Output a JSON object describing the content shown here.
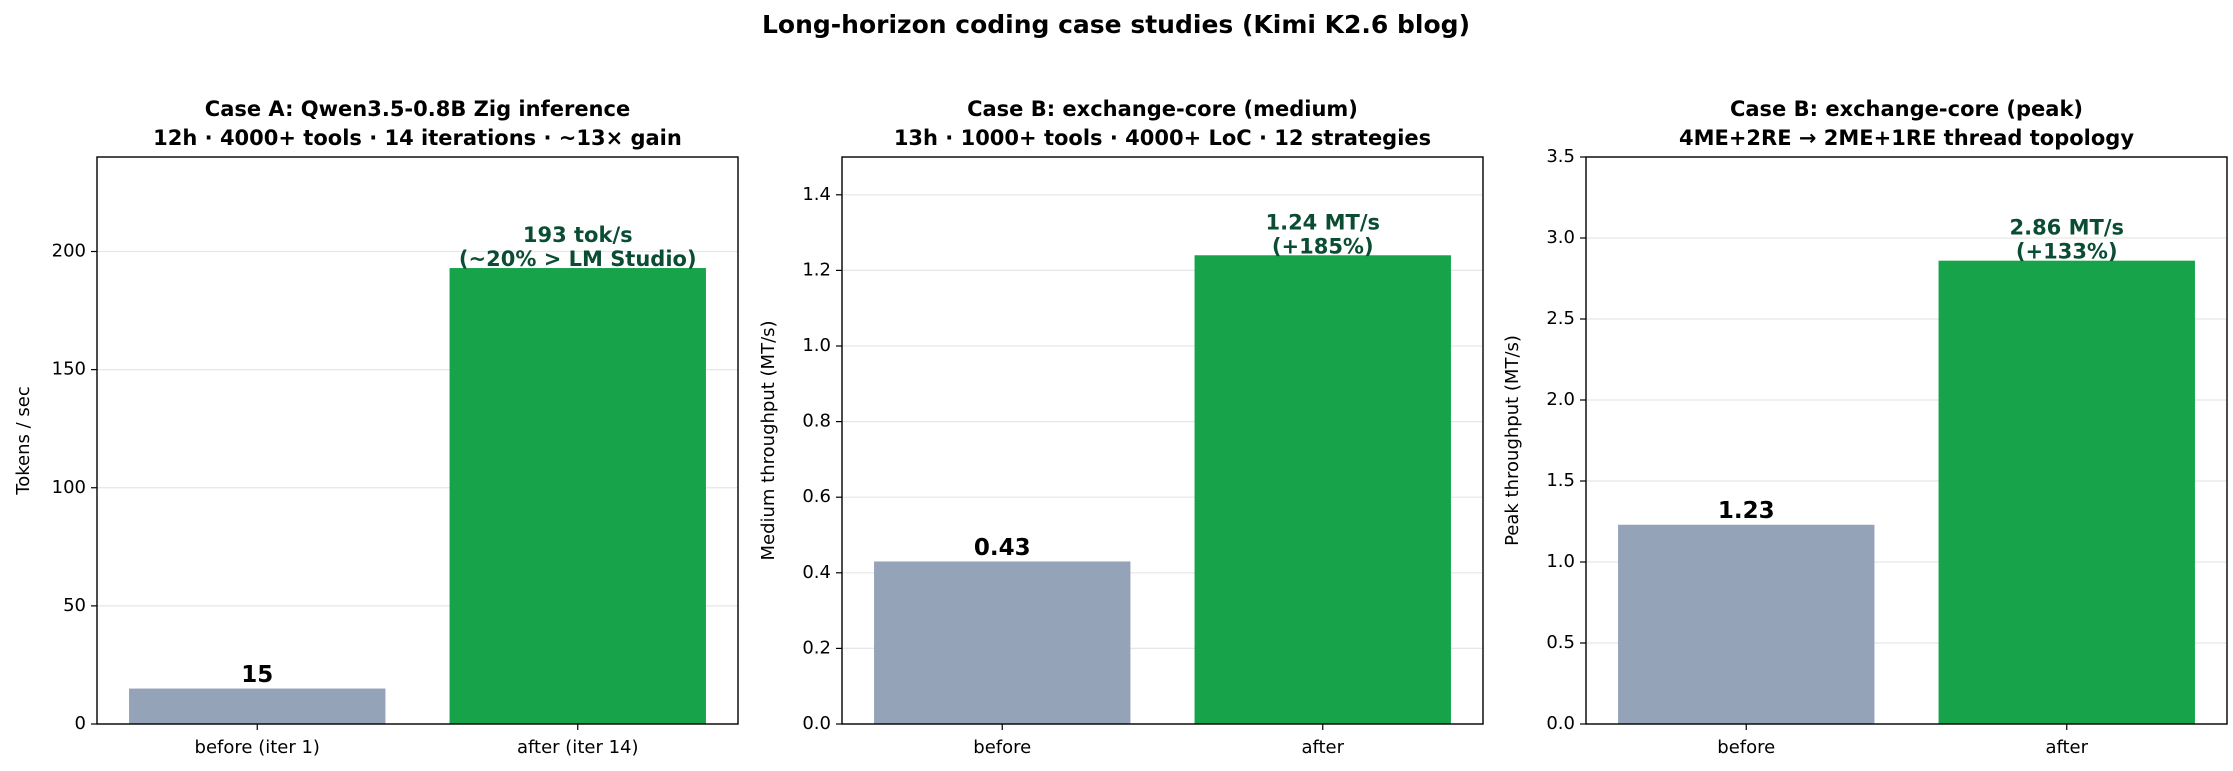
{
  "title": "Long-horizon coding case studies (Kimi K2.6 blog)",
  "chart_data": [
    {
      "type": "bar",
      "title": [
        "Case A: Qwen3.5-0.8B Zig inference",
        "12h · 4000+ tools · 14 iterations · ~13× gain"
      ],
      "y_label": "Tokens / sec",
      "categories": [
        "before (iter 1)",
        "after (iter 14)"
      ],
      "values": [
        15,
        193
      ],
      "value_labels": [
        "15",
        [
          "193 tok/s",
          "(~20% > LM Studio)"
        ]
      ],
      "colors": [
        "#94a3b8",
        "#16a34a"
      ],
      "label_colors": [
        "#000000",
        "#0b4d33"
      ],
      "ylim": [
        0,
        240
      ],
      "yticks": [
        0,
        50,
        100,
        150,
        200
      ],
      "grid": true
    },
    {
      "type": "bar",
      "title": [
        "Case B: exchange-core (medium)",
        "13h · 1000+ tools · 4000+ LoC · 12 strategies"
      ],
      "y_label": "Medium throughput (MT/s)",
      "categories": [
        "before",
        "after"
      ],
      "values": [
        0.43,
        1.24
      ],
      "value_labels": [
        "0.43",
        [
          "1.24 MT/s",
          "(+185%)"
        ]
      ],
      "colors": [
        "#94a3b8",
        "#16a34a"
      ],
      "label_colors": [
        "#000000",
        "#0b4d33"
      ],
      "ylim": [
        0,
        1.5
      ],
      "yticks": [
        {
          "value": 0,
          "label": "0.0"
        },
        0.2,
        0.4,
        0.6,
        0.8,
        {
          "value": 1,
          "label": "1.0"
        },
        1.2,
        1.4
      ],
      "grid": true
    },
    {
      "type": "bar",
      "title": [
        "Case B: exchange-core (peak)",
        "4ME+2RE → 2ME+1RE thread topology"
      ],
      "y_label": "Peak throughput (MT/s)",
      "categories": [
        "before",
        "after"
      ],
      "values": [
        1.23,
        2.86
      ],
      "value_labels": [
        "1.23",
        [
          "2.86 MT/s",
          "(+133%)"
        ]
      ],
      "colors": [
        "#94a3b8",
        "#16a34a"
      ],
      "label_colors": [
        "#000000",
        "#0b4d33"
      ],
      "ylim": [
        0,
        3.5
      ],
      "yticks": [
        {
          "value": 0,
          "label": "0.0"
        },
        0.5,
        {
          "value": 1,
          "label": "1.0"
        },
        1.5,
        {
          "value": 2,
          "label": "2.0"
        },
        2.5,
        {
          "value": 3,
          "label": "3.0"
        },
        3.5
      ],
      "grid": true
    }
  ]
}
